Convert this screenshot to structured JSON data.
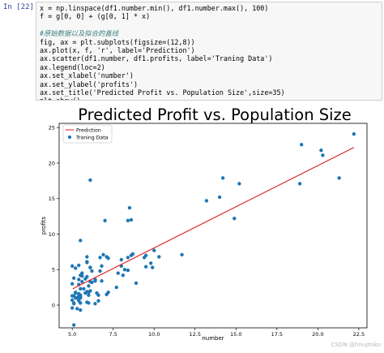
{
  "cell": {
    "prompt": "In  [22]:",
    "code_lines": [
      {
        "text": "x = np.linspace(df1.number.min(), df1.number.max(), 100)",
        "comment": false
      },
      {
        "text": "f = g[0, 0] + (g[0, 1] * x)",
        "comment": false
      },
      {
        "text": "",
        "comment": false
      },
      {
        "text": "#原始数据以及拟合的直线",
        "comment": true
      },
      {
        "text": "fig, ax = plt.subplots(figsize=(12,8))",
        "comment": false
      },
      {
        "text": "ax.plot(x, f, 'r', label='Prediction')",
        "comment": false
      },
      {
        "text": "ax.scatter(df1.number, df1.profits, label='Traning Data')",
        "comment": false
      },
      {
        "text": "ax.legend(loc=2)",
        "comment": false
      },
      {
        "text": "ax.set_xlabel('number')",
        "comment": false
      },
      {
        "text": "ax.set_ylabel('profits')",
        "comment": false
      },
      {
        "text": "ax.set_title('Predicted Profit vs. Population Size',size=35)",
        "comment": false
      },
      {
        "text": "plt.show()",
        "comment": false
      }
    ]
  },
  "watermark": "CSDN @hnujmiko",
  "colors": {
    "line": "#e41a1c",
    "scatter": "#1f77b4",
    "prompt": "#303f9f",
    "comment": "#408080"
  },
  "chart_data": {
    "type": "scatter",
    "title": "Predicted Profit vs. Population Size",
    "xlabel": "number",
    "ylabel": "profits",
    "xlim": [
      4.2,
      23.0
    ],
    "ylim": [
      -3.2,
      25.6
    ],
    "xticks": [
      5.0,
      7.5,
      10.0,
      12.5,
      15.0,
      17.5,
      20.0,
      22.5
    ],
    "xtick_labels": [
      "5.0",
      "7.5",
      "10.0",
      "12.5",
      "15.0",
      "17.5",
      "20.0",
      "22.5"
    ],
    "yticks": [
      0,
      5,
      10,
      15,
      20,
      25
    ],
    "ytick_labels": [
      "0",
      "5",
      "10",
      "15",
      "20",
      "25"
    ],
    "legend_position": "top-left",
    "legend": [
      "Prediction",
      "Traning Data"
    ],
    "series": [
      {
        "name": "Prediction",
        "type": "line",
        "x": [
          5.03,
          22.2
        ],
        "y": [
          2.3,
          22.2
        ]
      },
      {
        "name": "Traning Data",
        "type": "scatter",
        "x": [
          6.1,
          5.5,
          8.5,
          7.0,
          5.9,
          8.4,
          5.6,
          8.6,
          7.2,
          5.1,
          6.1,
          5.7,
          6.9,
          5.3,
          5.9,
          6.0,
          5.2,
          5.9,
          5.2,
          5.1,
          6.1,
          5.4,
          5.9,
          6.7,
          5.5,
          6.0,
          5.2,
          5.8,
          5.6,
          5.4,
          8.0,
          5.9,
          8.0,
          6.2,
          5.5,
          5.4,
          6.0,
          6.2,
          5.4,
          5.1,
          5.5,
          5.9,
          5.5,
          5.5,
          6.5,
          6.0,
          5.6,
          6.4,
          6.7,
          6.4,
          6.1,
          6.6,
          7.1,
          8.1,
          6.4,
          7.7,
          5.0,
          5.4,
          5.8,
          8.4,
          7.8,
          7.1,
          5.1,
          6.1,
          6.4,
          5.0,
          5.0,
          7.2,
          5.4,
          5.1,
          5.5,
          5.3,
          5.0,
          5.0,
          5.4,
          5.5,
          8.2,
          8.6,
          10.0,
          10.3,
          11.7,
          13.2,
          14.0,
          14.2,
          14.9,
          15.2,
          18.9,
          19.0,
          20.2,
          20.3,
          21.3,
          22.2,
          9.4,
          9.5,
          9.5,
          9.8,
          9.9,
          8.7,
          8.9,
          8.4,
          6.8,
          6.8,
          6.6,
          5.2
        ],
        "y": [
          17.6,
          9.1,
          13.7,
          11.9,
          6.8,
          11.9,
          3.3,
          12.0,
          6.6,
          3.8,
          3.3,
          2.3,
          7.1,
          1.0,
          6.1,
          2.7,
          1.8,
          6.0,
          1.0,
          0.3,
          5.3,
          3.6,
          0.4,
          6.7,
          1.2,
          1.4,
          1.7,
          3.7,
          4.1,
          0.6,
          5.5,
          1.9,
          6.4,
          3.2,
          2.3,
          5.6,
          1.8,
          4.8,
          1.0,
          0.2,
          1.0,
          4.0,
          0.3,
          1.4,
          1.7,
          0.3,
          4.5,
          0.2,
          4.8,
          3.4,
          2.0,
          1.4,
          1.5,
          4.2,
          3.5,
          2.5,
          1.3,
          1.6,
          1.7,
          4.9,
          4.5,
          6.8,
          1.3,
          5.3,
          3.6,
          -0.4,
          0.7,
          1.8,
          2.9,
          -2.8,
          -0.7,
          -0.5,
          3.0,
          5.5,
          1.3,
          4.2,
          5.0,
          7.0,
          7.7,
          6.8,
          7.1,
          14.7,
          15.2,
          17.9,
          12.2,
          17.1,
          17.1,
          22.6,
          21.8,
          21.1,
          17.9,
          24.1,
          6.7,
          7.0,
          5.4,
          5.9,
          5.3,
          7.2,
          3.1,
          6.7,
          3.4,
          5.5,
          0.6,
          5.2
        ]
      }
    ]
  }
}
